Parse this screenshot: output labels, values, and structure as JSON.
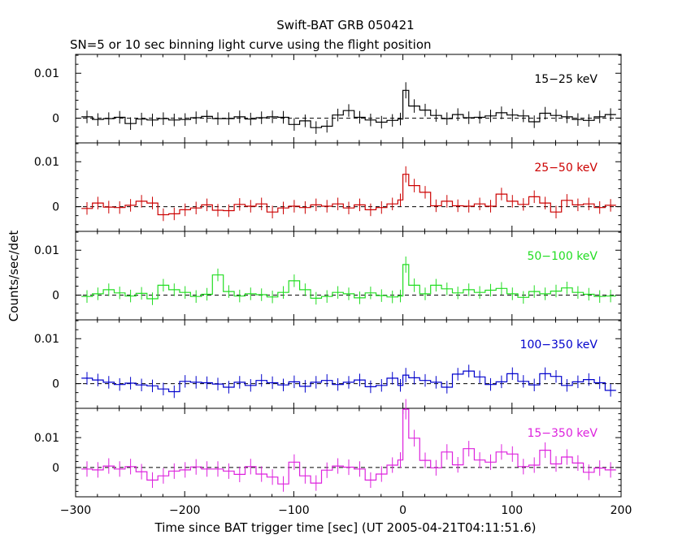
{
  "chart_data": {
    "type": "line",
    "title": "Swift-BAT GRB 050421",
    "subtitle": "SN=5 or 10 sec binning light curve using the flight position",
    "xlabel": "Time since BAT trigger time [sec] (UT 2005-04-21T04:11:51.6)",
    "ylabel": "Counts/sec/det",
    "xlim": [
      -300,
      200
    ],
    "x_ticks": [
      "−300",
      "−200",
      "−100",
      "0",
      "100",
      "200"
    ],
    "y_ticks": [
      "0.01",
      "0"
    ],
    "bin_edges": [
      -294.6,
      -284.6,
      -274.6,
      -264.6,
      -254.6,
      -244.6,
      -234.6,
      -224.6,
      -214.6,
      -204.6,
      -194.6,
      -184.6,
      -174.6,
      -164.6,
      -154.6,
      -144.6,
      -134.6,
      -124.6,
      -114.6,
      -104.6,
      -94.6,
      -84.6,
      -74.6,
      -64.6,
      -54.6,
      -44.6,
      -34.6,
      -24.6,
      -14.6,
      -4.6,
      0.0,
      5.4,
      15.4,
      25.4,
      35.4,
      45.4,
      55.4,
      65.4,
      75.4,
      85.4,
      95.4,
      105.4,
      115.4,
      125.4,
      135.4,
      145.4,
      155.4,
      165.4,
      175.4,
      185.4,
      195.4
    ],
    "panels": [
      {
        "label": "15−25 keV",
        "color": "#000000",
        "ylim": [
          -0.0055,
          0.0142
        ],
        "values": [
          0.0003,
          -0.0003,
          -0.0001,
          0.0002,
          -0.0012,
          -0.0002,
          -0.0004,
          -0.0001,
          -0.0004,
          -0.0003,
          0.0001,
          0.0004,
          -0.0001,
          -0.0001,
          0.0003,
          -0.0002,
          0.0001,
          0.0003,
          0.0002,
          -0.0014,
          -0.0006,
          -0.0021,
          -0.0018,
          0.0007,
          0.0017,
          0.0002,
          -0.0004,
          -0.0009,
          -0.0005,
          -0.0002,
          0.0062,
          0.0027,
          0.0018,
          0.0006,
          -0.0001,
          0.0008,
          0.0001,
          0.0002,
          0.0005,
          0.0012,
          0.0007,
          0.0005,
          -0.0008,
          0.0011,
          0.0006,
          0.0003,
          -0.0003,
          -0.0005,
          0.0003,
          0.0008
        ],
        "errors": [
          0.0014,
          0.0014,
          0.0014,
          0.0014,
          0.0014,
          0.0014,
          0.0014,
          0.0014,
          0.0014,
          0.0014,
          0.0014,
          0.0014,
          0.0014,
          0.0014,
          0.0014,
          0.0014,
          0.0014,
          0.0014,
          0.0014,
          0.0014,
          0.0014,
          0.0014,
          0.0014,
          0.0014,
          0.0014,
          0.0014,
          0.0014,
          0.0014,
          0.0014,
          0.0014,
          0.0018,
          0.0015,
          0.0014,
          0.0014,
          0.0014,
          0.0014,
          0.0014,
          0.0014,
          0.0014,
          0.0014,
          0.0014,
          0.0014,
          0.0014,
          0.0014,
          0.0014,
          0.0014,
          0.0014,
          0.0014,
          0.0014,
          0.0014
        ]
      },
      {
        "label": "25−50 keV",
        "color": "#cc0000",
        "ylim": [
          -0.0055,
          0.0142
        ],
        "values": [
          -0.0004,
          0.0008,
          -0.0001,
          -0.0002,
          0.0003,
          0.0012,
          0.0008,
          -0.0018,
          -0.0016,
          -0.0007,
          -0.0003,
          0.0004,
          -0.0008,
          -0.0009,
          0.0005,
          0.0001,
          0.0006,
          -0.0012,
          -0.0003,
          0.0001,
          -0.0002,
          0.0004,
          0.0001,
          0.0006,
          -0.0003,
          0.0004,
          -0.0007,
          -0.0002,
          0.0006,
          0.0015,
          0.0072,
          0.0047,
          0.0032,
          0.0002,
          0.0012,
          0.0002,
          0.0001,
          0.0006,
          0.0001,
          0.0028,
          0.0012,
          0.0005,
          0.0022,
          0.0008,
          -0.0012,
          0.0014,
          0.0004,
          0.0006,
          -0.0002,
          0.0003
        ],
        "errors": [
          0.0014,
          0.0014,
          0.0014,
          0.0014,
          0.0014,
          0.0014,
          0.0014,
          0.0014,
          0.0014,
          0.0014,
          0.0014,
          0.0014,
          0.0014,
          0.0014,
          0.0014,
          0.0014,
          0.0014,
          0.0014,
          0.0014,
          0.0014,
          0.0014,
          0.0014,
          0.0014,
          0.0014,
          0.0014,
          0.0014,
          0.0014,
          0.0014,
          0.0014,
          0.0014,
          0.0018,
          0.0015,
          0.0014,
          0.0014,
          0.0014,
          0.0014,
          0.0014,
          0.0014,
          0.0014,
          0.0014,
          0.0014,
          0.0014,
          0.0014,
          0.0014,
          0.0014,
          0.0014,
          0.0014,
          0.0014,
          0.0014,
          0.0014
        ]
      },
      {
        "label": "50−100 keV",
        "color": "#22dd22",
        "ylim": [
          -0.0055,
          0.0142
        ],
        "values": [
          -0.0003,
          0.0003,
          0.0012,
          0.0005,
          -0.0002,
          0.0004,
          -0.0008,
          0.0022,
          0.0012,
          0.0006,
          -0.0003,
          0.0002,
          0.0045,
          0.0008,
          -0.0002,
          0.0003,
          0.0001,
          -0.0004,
          0.0006,
          0.0032,
          0.0012,
          -0.0007,
          -0.0003,
          0.0006,
          0.0003,
          -0.0006,
          0.0005,
          -0.0001,
          -0.0004,
          -0.0002,
          0.0068,
          0.0022,
          0.0003,
          0.0022,
          0.0014,
          0.0005,
          0.0012,
          0.0006,
          0.0011,
          0.0015,
          0.0003,
          -0.0005,
          0.0008,
          0.0003,
          0.0009,
          0.0016,
          0.0006,
          0.0002,
          -0.0003,
          -0.0002
        ],
        "errors": [
          0.0014,
          0.0014,
          0.0014,
          0.0014,
          0.0014,
          0.0014,
          0.0014,
          0.0014,
          0.0014,
          0.0014,
          0.0014,
          0.0014,
          0.0014,
          0.0014,
          0.0014,
          0.0014,
          0.0014,
          0.0014,
          0.0014,
          0.0014,
          0.0014,
          0.0014,
          0.0014,
          0.0014,
          0.0014,
          0.0014,
          0.0014,
          0.0014,
          0.0014,
          0.0014,
          0.0018,
          0.0015,
          0.0014,
          0.0014,
          0.0014,
          0.0014,
          0.0014,
          0.0014,
          0.0014,
          0.0014,
          0.0014,
          0.0014,
          0.0014,
          0.0014,
          0.0014,
          0.0014,
          0.0014,
          0.0014,
          0.0014,
          0.0014
        ]
      },
      {
        "label": "100−350 keV",
        "color": "#0000cc",
        "ylim": [
          -0.0055,
          0.0142
        ],
        "values": [
          0.0012,
          0.0008,
          0.0003,
          -0.0002,
          0.0001,
          -0.0003,
          -0.0005,
          -0.0012,
          -0.0018,
          0.0005,
          0.0003,
          0.0002,
          -0.0001,
          -0.0008,
          0.0003,
          -0.0004,
          0.0007,
          0.0002,
          -0.0003,
          0.0004,
          -0.0006,
          0.0003,
          0.0007,
          -0.0002,
          0.0003,
          0.0008,
          -0.0007,
          -0.0004,
          0.0012,
          -0.0004,
          0.0019,
          0.0013,
          0.0007,
          0.0003,
          -0.0008,
          0.0021,
          0.0028,
          0.0015,
          -0.0002,
          0.0004,
          0.0022,
          0.0005,
          -0.0003,
          0.0022,
          0.0016,
          -0.0004,
          0.0004,
          0.0009,
          0.0002,
          -0.0015
        ],
        "errors": [
          0.0014,
          0.0014,
          0.0014,
          0.0014,
          0.0014,
          0.0014,
          0.0014,
          0.0014,
          0.0014,
          0.0014,
          0.0014,
          0.0014,
          0.0014,
          0.0014,
          0.0014,
          0.0014,
          0.0014,
          0.0014,
          0.0014,
          0.0014,
          0.0014,
          0.0014,
          0.0014,
          0.0014,
          0.0014,
          0.0014,
          0.0014,
          0.0014,
          0.0014,
          0.0014,
          0.0016,
          0.0015,
          0.0014,
          0.0014,
          0.0014,
          0.0014,
          0.0014,
          0.0014,
          0.0014,
          0.0014,
          0.0014,
          0.0014,
          0.0014,
          0.0014,
          0.0014,
          0.0014,
          0.0014,
          0.0014,
          0.0014,
          0.0014
        ]
      },
      {
        "label": "15−350 keV",
        "color": "#dd22dd",
        "ylim": [
          -0.0098,
          0.0198
        ],
        "values": [
          -0.0005,
          -0.0008,
          0.0005,
          -0.0005,
          0.0003,
          -0.0014,
          -0.0042,
          -0.0028,
          -0.0012,
          -0.0008,
          0.0002,
          -0.0005,
          -0.0005,
          -0.0012,
          -0.0023,
          0.0003,
          -0.0022,
          -0.0032,
          -0.0055,
          0.0018,
          -0.0028,
          -0.0052,
          -0.0009,
          0.0005,
          0.0001,
          -0.0005,
          -0.0042,
          -0.0022,
          0.0008,
          0.0025,
          0.0195,
          0.0098,
          0.0024,
          -0.0001,
          0.0052,
          0.0009,
          0.0063,
          0.0025,
          0.0018,
          0.0052,
          0.0045,
          0.0003,
          0.0008,
          0.0058,
          0.0012,
          0.0035,
          0.0015,
          -0.0016,
          -0.0002,
          -0.0008
        ],
        "errors": [
          0.0026,
          0.0026,
          0.0026,
          0.0026,
          0.0026,
          0.0026,
          0.0026,
          0.0026,
          0.0026,
          0.0026,
          0.0026,
          0.0026,
          0.0026,
          0.0026,
          0.0026,
          0.0026,
          0.0026,
          0.0026,
          0.0026,
          0.0026,
          0.0026,
          0.0026,
          0.0026,
          0.0026,
          0.0026,
          0.0026,
          0.0026,
          0.0026,
          0.0026,
          0.0026,
          0.0034,
          0.0028,
          0.0026,
          0.0026,
          0.0026,
          0.0026,
          0.0026,
          0.0026,
          0.0026,
          0.0026,
          0.0026,
          0.0026,
          0.0026,
          0.0026,
          0.0026,
          0.0026,
          0.0026,
          0.0026,
          0.0026,
          0.0026
        ]
      }
    ]
  }
}
